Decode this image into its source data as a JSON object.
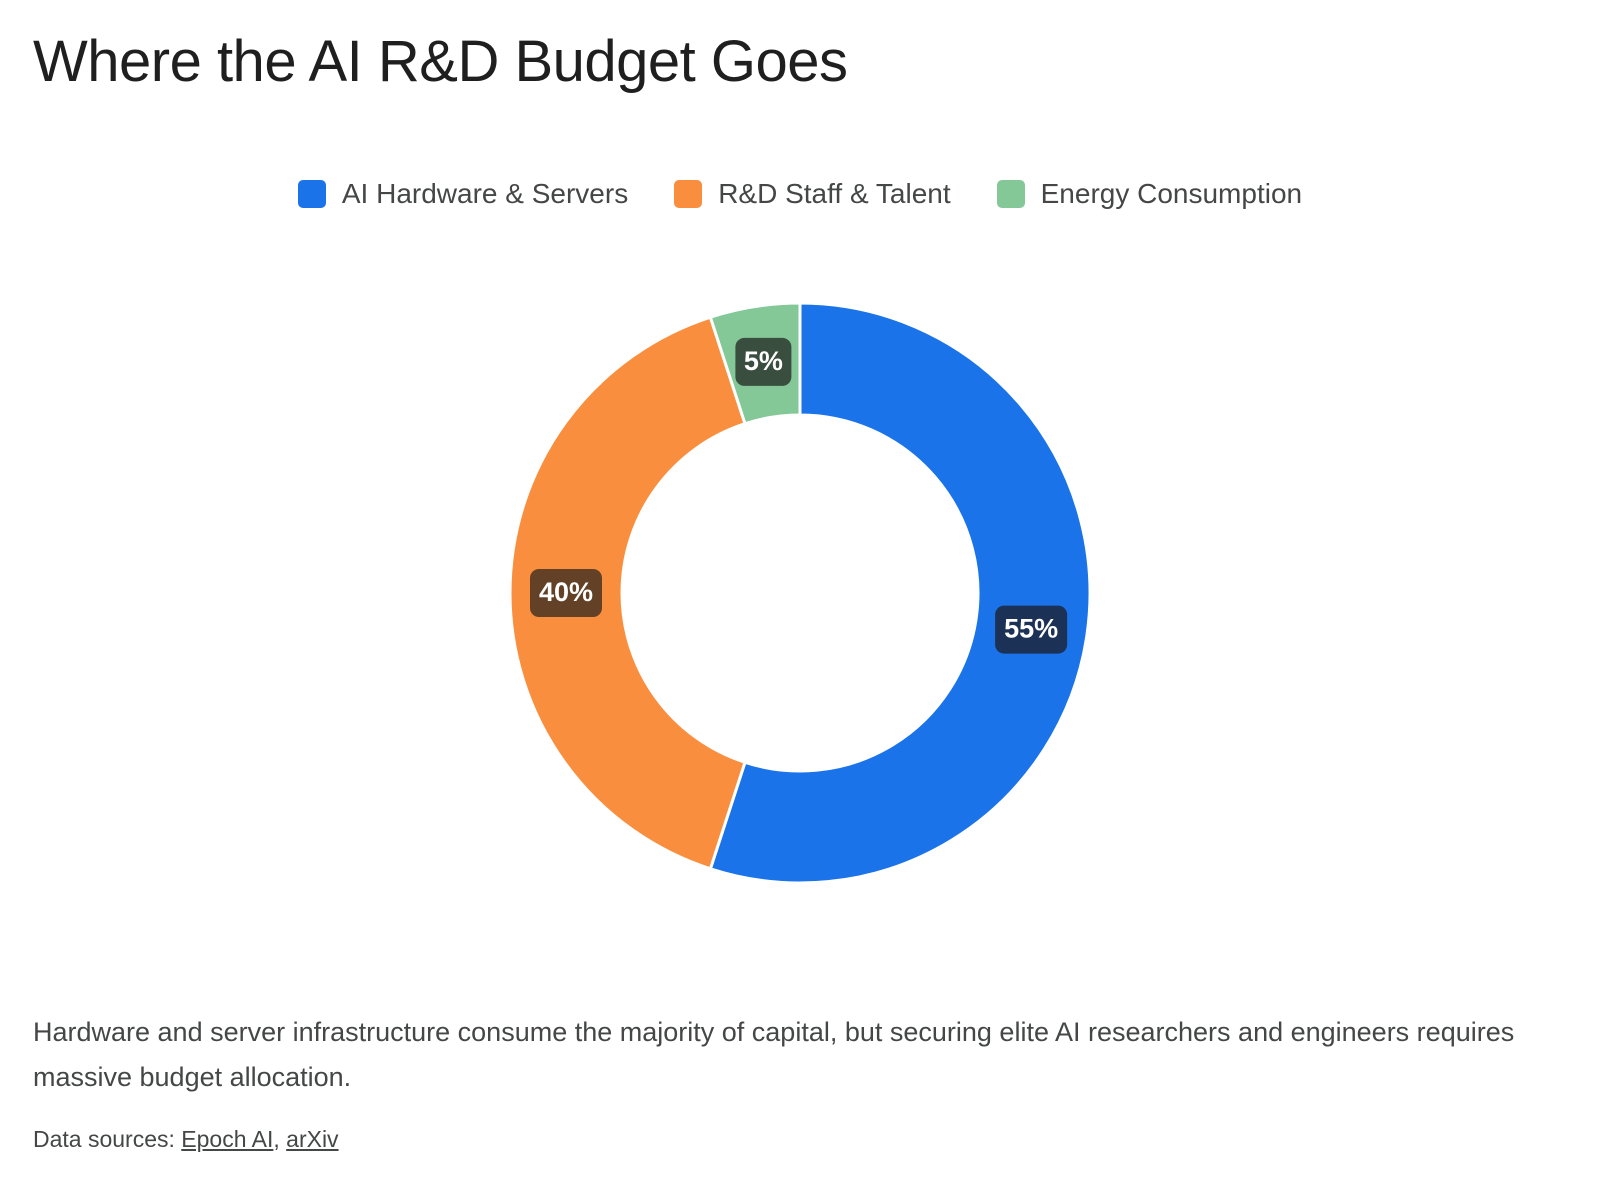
{
  "page": {
    "title": "Where the AI R&D Budget Goes",
    "description": "Hardware and server infrastructure consume the majority of capital, but securing elite AI researchers and engineers requires massive budget allocation.",
    "sources_prefix": "Data sources: ",
    "sources": [
      {
        "label": "Epoch AI"
      },
      {
        "label": "arXiv"
      }
    ],
    "sources_separator": ","
  },
  "chart_data": {
    "type": "pie",
    "variant": "donut",
    "title": "Where the AI R&D Budget Goes",
    "categories": [
      "AI Hardware & Servers",
      "R&D Staff & Talent",
      "Energy Consumption"
    ],
    "values": [
      55,
      40,
      5
    ],
    "unit": "%",
    "data_labels": [
      "55%",
      "40%",
      "5%"
    ],
    "colors": [
      "#1a73e8",
      "#f98f3e",
      "#84c898"
    ],
    "label_box_colors": [
      "#1c3156",
      "#634126",
      "#3a4e3f"
    ],
    "legend_position": "top-center",
    "start_angle": "12 o'clock",
    "direction": "clockwise"
  }
}
